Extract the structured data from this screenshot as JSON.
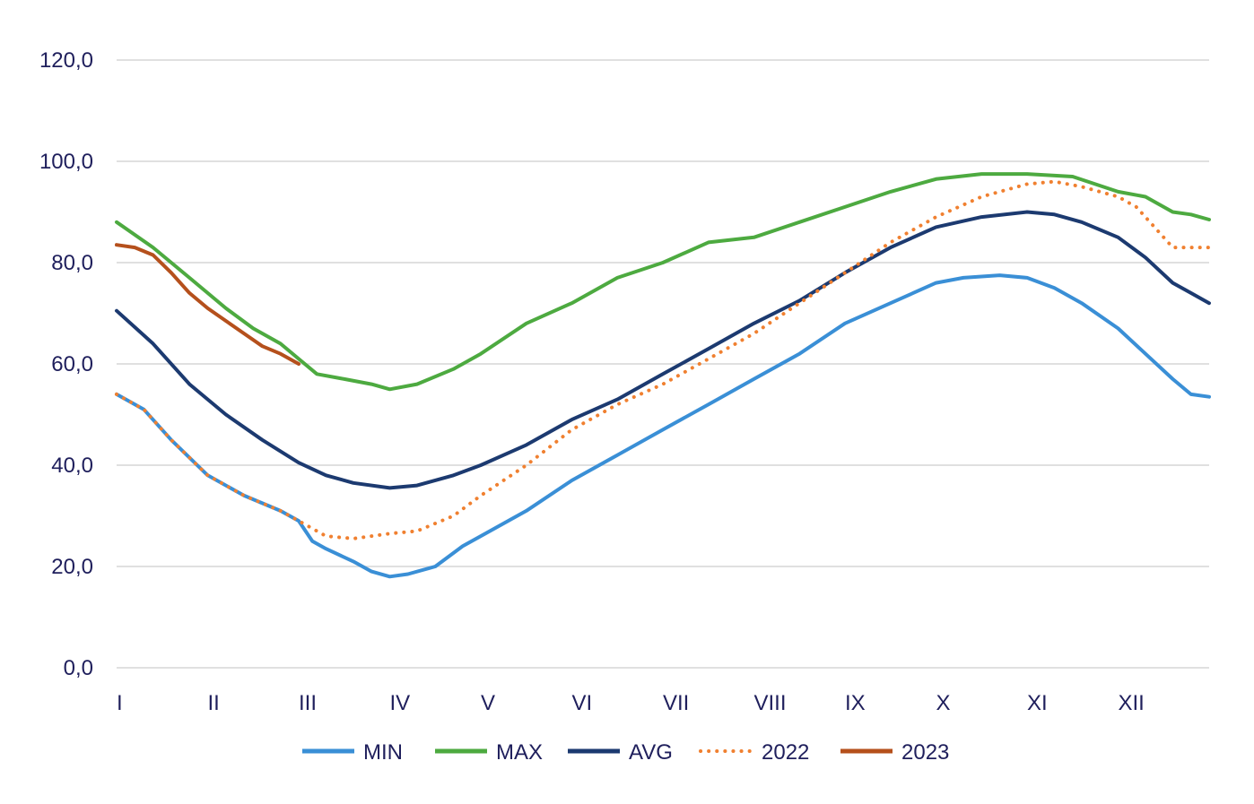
{
  "chart_data": {
    "type": "line",
    "title": "",
    "xlabel": "",
    "ylabel": "",
    "ylim": [
      0,
      120
    ],
    "yticks": [
      "0,0",
      "20,0",
      "40,0",
      "60,0",
      "80,0",
      "100,0",
      "120,0"
    ],
    "ytick_values": [
      0,
      20,
      40,
      60,
      80,
      100,
      120
    ],
    "x_range": [
      1,
      13
    ],
    "xticks": [
      {
        "label": "I",
        "value": 1
      },
      {
        "label": "II",
        "value": 2
      },
      {
        "label": "III",
        "value": 3
      },
      {
        "label": "IV",
        "value": 4
      },
      {
        "label": "V",
        "value": 5
      },
      {
        "label": "VI",
        "value": 6
      },
      {
        "label": "VII",
        "value": 7
      },
      {
        "label": "VIII",
        "value": 8
      },
      {
        "label": "IX",
        "value": 9
      },
      {
        "label": "X",
        "value": 10
      },
      {
        "label": "XI",
        "value": 11
      },
      {
        "label": "XII",
        "value": 12
      }
    ],
    "grid": true,
    "legend_position": "bottom",
    "series": [
      {
        "name": "MIN",
        "color": "#3a8fd6",
        "dash": "solid",
        "x": [
          1.0,
          1.3,
          1.6,
          2.0,
          2.4,
          2.8,
          3.0,
          3.15,
          3.3,
          3.6,
          3.8,
          4.0,
          4.2,
          4.5,
          4.8,
          5.0,
          5.5,
          6.0,
          6.5,
          7.0,
          7.5,
          8.0,
          8.5,
          9.0,
          9.5,
          10.0,
          10.3,
          10.7,
          11.0,
          11.3,
          11.6,
          12.0,
          12.3,
          12.6,
          12.8,
          13.0
        ],
        "y": [
          54,
          51,
          45,
          38,
          34,
          31,
          29,
          25,
          23.5,
          21,
          19,
          18,
          18.5,
          20,
          24,
          26,
          31,
          37,
          42,
          47,
          52,
          57,
          62,
          68,
          72,
          76,
          77,
          77.5,
          77,
          75,
          72,
          67,
          62,
          57,
          54,
          53.5
        ]
      },
      {
        "name": "MAX",
        "color": "#4daa40",
        "dash": "solid",
        "x": [
          1.0,
          1.4,
          1.8,
          2.2,
          2.5,
          2.8,
          3.0,
          3.2,
          3.5,
          3.8,
          4.0,
          4.3,
          4.7,
          5.0,
          5.5,
          6.0,
          6.5,
          7.0,
          7.5,
          8.0,
          8.5,
          9.0,
          9.5,
          10.0,
          10.5,
          11.0,
          11.5,
          12.0,
          12.3,
          12.6,
          12.8,
          13.0
        ],
        "y": [
          88,
          83,
          77,
          71,
          67,
          64,
          61,
          58,
          57,
          56,
          55,
          56,
          59,
          62,
          68,
          72,
          77,
          80,
          84,
          85,
          88,
          91,
          94,
          96.5,
          97.5,
          97.5,
          97,
          94,
          93,
          90,
          89.5,
          88.5
        ]
      },
      {
        "name": "AVG",
        "color": "#1c3a70",
        "dash": "solid",
        "x": [
          1.0,
          1.4,
          1.8,
          2.2,
          2.6,
          3.0,
          3.3,
          3.6,
          4.0,
          4.3,
          4.7,
          5.0,
          5.5,
          6.0,
          6.5,
          7.0,
          7.5,
          8.0,
          8.5,
          9.0,
          9.5,
          10.0,
          10.5,
          11.0,
          11.3,
          11.6,
          12.0,
          12.3,
          12.6,
          12.8,
          13.0
        ],
        "y": [
          70.5,
          64,
          56,
          50,
          45,
          40.5,
          38,
          36.5,
          35.5,
          36,
          38,
          40,
          44,
          49,
          53,
          58,
          63,
          68,
          72.5,
          78,
          83,
          87,
          89,
          90,
          89.5,
          88,
          85,
          81,
          76,
          74,
          72
        ]
      },
      {
        "name": "2022",
        "color": "#f08030",
        "dash": "dotted",
        "x": [
          1.0,
          1.3,
          1.6,
          2.0,
          2.4,
          2.8,
          3.0,
          3.3,
          3.6,
          4.0,
          4.3,
          4.7,
          5.0,
          5.5,
          6.0,
          6.5,
          7.0,
          7.5,
          8.0,
          8.5,
          9.0,
          9.5,
          10.0,
          10.5,
          11.0,
          11.3,
          11.6,
          12.0,
          12.2,
          12.4,
          12.6,
          12.8,
          13.0
        ],
        "y": [
          54,
          51,
          45,
          38,
          34,
          31,
          29,
          26,
          25.5,
          26.5,
          27,
          30,
          34,
          40,
          47,
          52,
          56,
          61,
          66,
          72,
          78,
          84,
          89,
          93,
          95.5,
          96,
          95,
          93,
          91,
          87,
          83,
          83,
          83
        ]
      },
      {
        "name": "2023",
        "color": "#b5501c",
        "dash": "solid",
        "x": [
          1.0,
          1.2,
          1.4,
          1.6,
          1.8,
          2.0,
          2.2,
          2.4,
          2.6,
          2.8,
          3.0
        ],
        "y": [
          83.5,
          83,
          81.5,
          78,
          74,
          71,
          68.5,
          66,
          63.5,
          62,
          60
        ]
      }
    ]
  }
}
